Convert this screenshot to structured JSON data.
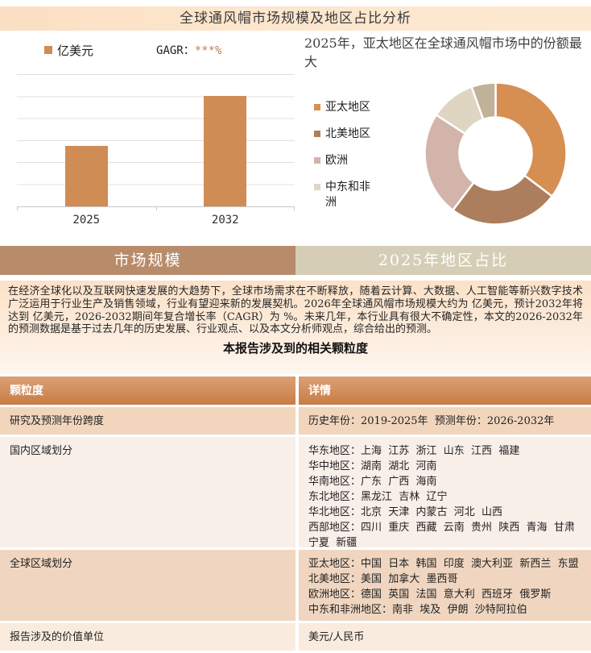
{
  "page": {
    "title": "全球通风帽市场规模及地区占比分析"
  },
  "bar_chart": {
    "legend_label": "亿美元",
    "cagr_label": "GAGR：",
    "cagr_value": "***%",
    "bar_color": "#d08c55"
  },
  "chart_data": [
    {
      "type": "bar",
      "categories": [
        "2025",
        "2032"
      ],
      "series": [
        {
          "name": "亿美元",
          "values": [
            0.46,
            0.835
          ]
        }
      ],
      "values_masked": true,
      "annotation": "GAGR：***%",
      "ylabel": "亿美元",
      "ylim": [
        0,
        1
      ],
      "grid": true,
      "legend_position": "top-left"
    },
    {
      "type": "pie",
      "donut": true,
      "title": "2025年，亚太地区在全球通风帽市场中的份额最大",
      "labels": [
        "亚太地区",
        "北美地区",
        "欧洲",
        "中东和非洲",
        ""
      ],
      "values": [
        35.3,
        25.0,
        23.9,
        10.3,
        5.5
      ],
      "colors": [
        "#d68e51",
        "#ac7e5d",
        "#d3b4ab",
        "#ded6c2",
        "#c2b199"
      ],
      "legend_position": "left"
    }
  ],
  "tabs": [
    {
      "label": "市场规模",
      "active": true
    },
    {
      "label": "2025年地区占比",
      "active": false
    }
  ],
  "summary": {
    "text": "在经济全球化以及互联网快速发展的大趋势下，全球市场需求在不断释放，随着云计算、大数据、人工智能等新兴数字技术广泛运用于行业生产及销售领域，行业有望迎来新的发展契机。2026年全球通风帽市场规模大约为 亿美元，预计2032年将达到 亿美元，2026-2032期间年复合增长率（CAGR）为 %。未来几年，本行业具有很大不确定性，本文的2026-2032年的预测数据是基于过去几年的历史发展、行业观点、以及本文分析师观点，综合给出的预测。",
    "heading": "本报告涉及到的相关颗粒度"
  },
  "table": {
    "headers": [
      "颗粒度",
      "详情"
    ],
    "rows": [
      {
        "term": "研究及预测年份跨度",
        "detail": "历史年份：2019-2025年  预测年份：2026-2032年"
      },
      {
        "term": "国内区域划分",
        "detail": "华东地区：上海  江苏  浙江  山东  江西  福建\n华中地区：湖南  湖北  河南\n华南地区：广东  广西  海南\n东北地区：黑龙江  吉林  辽宁\n华北地区：北京  天津  内蒙古  河北  山西\n西部地区：四川  重庆  西藏  云南  贵州  陕西  青海  甘肃  宁夏  新疆"
      },
      {
        "term": "全球区域划分",
        "detail": "亚太地区：中国  日本  韩国  印度  澳大利亚  新西兰  东盟\n北美地区：美国  加拿大  墨西哥\n欧洲地区：德国  英国  法国  意大利  西班牙  俄罗斯\n中东和非洲地区：南非  埃及  伊朗  沙特阿拉伯"
      },
      {
        "term": "报告涉及的价值单位",
        "detail": "美元/人民币"
      }
    ]
  }
}
